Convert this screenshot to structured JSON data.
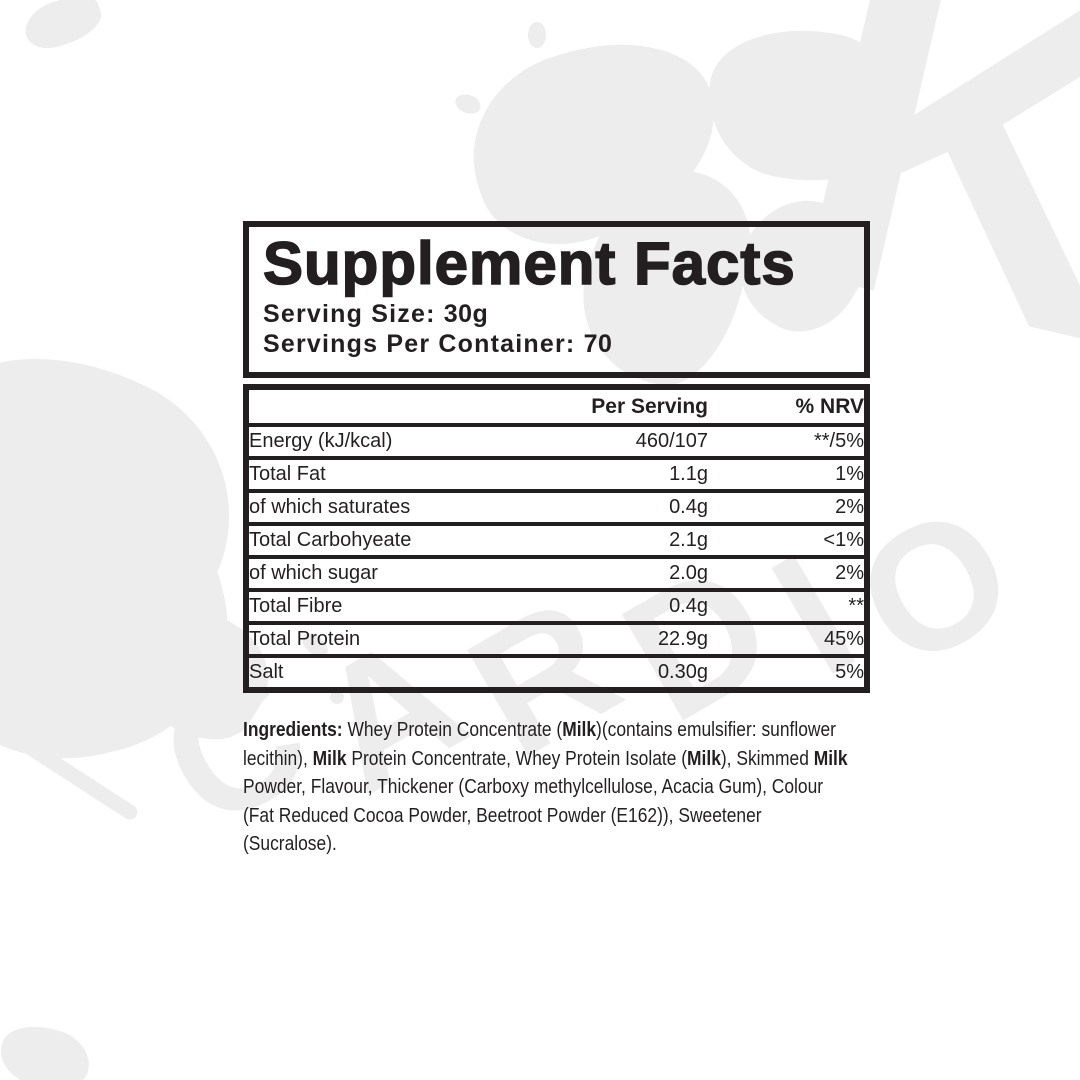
{
  "header": {
    "title": "Supplement Facts",
    "serving_size_label": "Serving Size: ",
    "serving_size_value": "30g",
    "servings_label": "Servings Per Container: ",
    "servings_value": "70"
  },
  "table": {
    "columns": {
      "per_serving": "Per Serving",
      "nrv": "% NRV"
    },
    "rows": [
      {
        "label": "Energy (kJ/kcal)",
        "per_serving": "460/107",
        "nrv": "**/5%"
      },
      {
        "label": "Total Fat",
        "per_serving": "1.1g",
        "nrv": "1%"
      },
      {
        "label": "of which saturates",
        "per_serving": "0.4g",
        "nrv": "2%"
      },
      {
        "label": "Total Carbohyeate",
        "per_serving": "2.1g",
        "nrv": "<1%"
      },
      {
        "label": "of which sugar",
        "per_serving": "2.0g",
        "nrv": "2%"
      },
      {
        "label": "Total Fibre",
        "per_serving": "0.4g",
        "nrv": "**"
      },
      {
        "label": "Total Protein",
        "per_serving": "22.9g",
        "nrv": "45%"
      },
      {
        "label": "Salt",
        "per_serving": "0.30g",
        "nrv": "5%"
      }
    ]
  },
  "ingredients": {
    "segments": [
      {
        "text": "Ingredients: ",
        "bold": true
      },
      {
        "text": "Whey Protein Concentrate (",
        "bold": false
      },
      {
        "text": "Milk",
        "bold": true
      },
      {
        "text": ")(contains emulsifier: sunflower lecithin), ",
        "bold": false
      },
      {
        "text": "Milk",
        "bold": true
      },
      {
        "text": " Protein Concentrate, Whey Protein Isolate (",
        "bold": false
      },
      {
        "text": "Milk",
        "bold": true
      },
      {
        "text": "), Skimmed ",
        "bold": false
      },
      {
        "text": "Milk",
        "bold": true
      },
      {
        "text": " Powder, Flavour, Thickener (Carboxy methylcellulose, Acacia Gum), Colour (Fat Reduced Cocoa Powder, Beetroot Powder (E162)), Sweetener (Sucralose).",
        "bold": false
      }
    ]
  },
  "watermark": {
    "word": "CARDIO",
    "letter": "K"
  },
  "colors": {
    "ink": "#231f20",
    "border": "#1d1d1b",
    "watermark": "#ededee",
    "background": "#ffffff"
  }
}
